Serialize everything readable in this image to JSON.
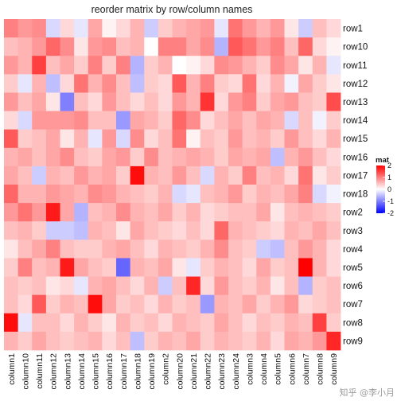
{
  "chart_data": {
    "type": "heatmap",
    "title": "reorder matrix by row/column names",
    "rows": [
      "row1",
      "row10",
      "row11",
      "row12",
      "row13",
      "row14",
      "row15",
      "row16",
      "row17",
      "row18",
      "row2",
      "row3",
      "row4",
      "row5",
      "row6",
      "row7",
      "row8",
      "row9"
    ],
    "columns": [
      "column1",
      "column10",
      "column11",
      "column12",
      "column13",
      "column14",
      "column15",
      "column16",
      "column17",
      "column18",
      "column19",
      "column2",
      "column20",
      "column21",
      "column22",
      "column23",
      "column24",
      "column3",
      "column4",
      "column5",
      "column6",
      "column7",
      "column8",
      "column9"
    ],
    "values": [
      [
        1.0,
        0.8,
        0.9,
        -0.3,
        0.3,
        -0.2,
        0.7,
        0.1,
        0.3,
        0.6,
        -0.4,
        0.4,
        0.6,
        0.7,
        0.8,
        -0.2,
        1.1,
        0.8,
        0.6,
        0.8,
        0.2,
        -0.4,
        0.5,
        0.3
      ],
      [
        0.5,
        0.6,
        0.8,
        1.2,
        0.9,
        0.2,
        0.8,
        0.9,
        0.5,
        0.6,
        0.0,
        1.0,
        1.0,
        0.7,
        0.9,
        -0.6,
        1.3,
        1.1,
        0.8,
        1.0,
        0.5,
        1.2,
        0.3,
        0.1
      ],
      [
        0.8,
        0.6,
        1.5,
        0.5,
        0.7,
        0.4,
        1.0,
        0.4,
        1.0,
        -0.6,
        0.4,
        0.6,
        0.0,
        0.1,
        0.3,
        0.9,
        0.8,
        0.6,
        0.4,
        0.9,
        0.7,
        0.2,
        0.6,
        -0.2
      ],
      [
        0.4,
        -0.2,
        0.6,
        -0.5,
        0.3,
        1.1,
        0.6,
        0.9,
        0.5,
        -0.5,
        0.4,
        0.3,
        1.3,
        0.6,
        1.0,
        0.4,
        0.3,
        1.1,
        0.3,
        0.6,
        -0.1,
        0.7,
        0.4,
        0.2
      ],
      [
        0.8,
        0.5,
        0.7,
        0.2,
        -1.0,
        0.5,
        0.3,
        0.8,
        0.5,
        0.3,
        0.5,
        0.3,
        0.8,
        0.6,
        1.6,
        0.3,
        0.8,
        1.0,
        0.4,
        0.7,
        0.8,
        0.5,
        0.4,
        1.4
      ],
      [
        0.3,
        -0.3,
        0.8,
        0.8,
        0.8,
        0.9,
        0.5,
        0.5,
        -0.8,
        0.7,
        0.6,
        0.4,
        1.2,
        0.9,
        0.3,
        0.5,
        0.7,
        0.5,
        0.7,
        0.6,
        -0.3,
        0.5,
        -0.1,
        0.4
      ],
      [
        1.3,
        0.4,
        0.5,
        0.7,
        0.2,
        0.6,
        -0.2,
        0.8,
        -0.3,
        0.9,
        0.3,
        0.5,
        1.1,
        0.1,
        0.5,
        0.4,
        0.8,
        0.5,
        0.6,
        0.4,
        0.8,
        0.5,
        0.3,
        0.6
      ],
      [
        0.6,
        0.7,
        0.5,
        0.7,
        0.9,
        0.5,
        0.4,
        0.7,
        0.8,
        0.4,
        0.9,
        0.5,
        0.6,
        0.7,
        0.6,
        0.4,
        0.7,
        0.6,
        0.7,
        -0.5,
        0.6,
        0.8,
        0.5,
        0.3
      ],
      [
        0.7,
        0.5,
        -0.4,
        0.6,
        0.5,
        0.8,
        0.6,
        0.7,
        0.4,
        1.9,
        0.6,
        0.5,
        0.8,
        0.5,
        -0.3,
        0.6,
        0.4,
        1.0,
        0.5,
        0.6,
        0.3,
        1.1,
        0.2,
        0.4
      ],
      [
        1.2,
        0.6,
        0.6,
        0.8,
        0.7,
        0.6,
        0.9,
        0.8,
        0.6,
        0.5,
        0.4,
        0.6,
        -0.3,
        -0.2,
        0.5,
        0.6,
        0.8,
        0.4,
        0.6,
        0.5,
        0.7,
        1.0,
        -0.3,
        -0.1
      ],
      [
        0.8,
        1.1,
        0.8,
        1.8,
        0.7,
        -0.6,
        0.5,
        0.6,
        0.9,
        0.6,
        0.5,
        0.7,
        0.4,
        0.6,
        0.3,
        0.4,
        0.5,
        0.5,
        0.7,
        0.2,
        0.5,
        0.6,
        0.5,
        0.4
      ],
      [
        0.5,
        0.6,
        0.4,
        -0.4,
        -0.4,
        -0.5,
        0.6,
        0.5,
        0.2,
        0.7,
        0.5,
        0.4,
        0.3,
        0.5,
        0.3,
        1.2,
        0.6,
        0.5,
        0.4,
        0.3,
        0.6,
        0.5,
        0.7,
        0.5
      ],
      [
        0.2,
        0.5,
        0.7,
        1.0,
        0.5,
        0.4,
        0.4,
        0.6,
        0.7,
        0.5,
        0.3,
        0.6,
        0.5,
        0.4,
        0.6,
        0.9,
        0.5,
        0.4,
        -0.4,
        -0.5,
        0.5,
        0.8,
        0.6,
        0.3
      ],
      [
        0.4,
        1.0,
        0.5,
        0.6,
        1.8,
        0.7,
        0.5,
        0.4,
        -1.2,
        0.6,
        0.5,
        0.7,
        0.2,
        -0.2,
        0.4,
        0.6,
        0.5,
        0.3,
        0.7,
        0.4,
        0.5,
        2.0,
        0.6,
        0.3
      ],
      [
        0.5,
        0.4,
        0.5,
        0.2,
        0.3,
        -0.2,
        0.6,
        0.7,
        0.5,
        0.3,
        0.6,
        -0.4,
        0.5,
        1.7,
        0.3,
        0.8,
        0.5,
        0.4,
        0.6,
        0.2,
        0.5,
        -0.6,
        0.4,
        0.5
      ],
      [
        0.5,
        0.3,
        1.3,
        0.4,
        0.6,
        0.5,
        1.9,
        0.7,
        0.4,
        0.5,
        0.3,
        0.6,
        0.4,
        0.5,
        -0.8,
        0.6,
        0.5,
        0.7,
        0.4,
        0.6,
        0.8,
        0.3,
        0.4,
        0.5
      ],
      [
        1.9,
        -0.2,
        0.5,
        0.5,
        0.3,
        0.6,
        0.4,
        0.2,
        0.6,
        0.4,
        0.5,
        0.3,
        0.6,
        0.5,
        0.4,
        0.7,
        0.5,
        0.3,
        0.5,
        0.4,
        0.6,
        0.5,
        1.5,
        0.4
      ],
      [
        0.6,
        0.4,
        0.7,
        0.5,
        0.4,
        0.5,
        0.6,
        0.3,
        0.5,
        -0.5,
        0.4,
        0.6,
        0.5,
        0.7,
        0.4,
        0.6,
        0.5,
        0.4,
        0.6,
        0.3,
        0.7,
        0.6,
        0.8,
        1.7
      ]
    ],
    "scale": {
      "min": -2,
      "mid": 0,
      "max": 2,
      "low_color": "#0000ff",
      "mid_color": "#ffffff",
      "high_color": "#ff0000"
    },
    "legend": {
      "title": "mat",
      "ticks": [
        2,
        1,
        0,
        -1,
        -2
      ],
      "placement": "right"
    },
    "grid": false
  },
  "watermark": "知乎 @李小月"
}
